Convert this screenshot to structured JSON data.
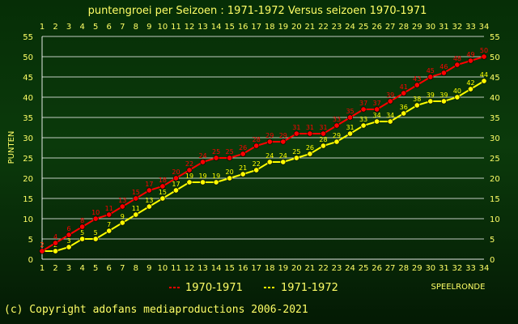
{
  "colors": {
    "background": "#0b3a0b",
    "text": "#ffff66",
    "series_red": "#ff0000",
    "series_yellow": "#ffff00",
    "grid": "#ffffff"
  },
  "footer": {
    "copyright": "(c) Copyright adofans mediaproductions 2006-2021"
  },
  "chart_data": {
    "type": "line",
    "title": "puntengroei per Seizoen : 1971-1972 Versus seizoen 1970-1971",
    "ylabel": "PUNTEN",
    "xlabel": "SPEELRONDE",
    "ylim": [
      0,
      55
    ],
    "yticks": [
      0,
      5,
      10,
      15,
      20,
      25,
      30,
      35,
      40,
      45,
      50,
      55
    ],
    "x": [
      1,
      2,
      3,
      4,
      5,
      6,
      7,
      8,
      9,
      10,
      11,
      12,
      13,
      14,
      15,
      16,
      17,
      18,
      19,
      20,
      21,
      22,
      23,
      24,
      25,
      26,
      27,
      28,
      29,
      30,
      31,
      32,
      33,
      34
    ],
    "grid": true,
    "legend_position": "bottom",
    "series": [
      {
        "name": "1970-1971",
        "color": "#ff0000",
        "values": [
          2,
          4,
          6,
          8,
          10,
          11,
          13,
          15,
          17,
          18,
          20,
          22,
          24,
          25,
          25,
          26,
          28,
          29,
          29,
          31,
          31,
          31,
          33,
          35,
          37,
          37,
          39,
          41,
          43,
          45,
          46,
          48,
          49,
          50
        ]
      },
      {
        "name": "1971-1972",
        "color": "#ffff00",
        "values": [
          2,
          2,
          3,
          5,
          5,
          7,
          9,
          11,
          13,
          15,
          17,
          19,
          19,
          19,
          20,
          21,
          22,
          24,
          24,
          25,
          26,
          28,
          29,
          31,
          33,
          34,
          34,
          36,
          38,
          39,
          39,
          40,
          42,
          44
        ]
      }
    ]
  }
}
